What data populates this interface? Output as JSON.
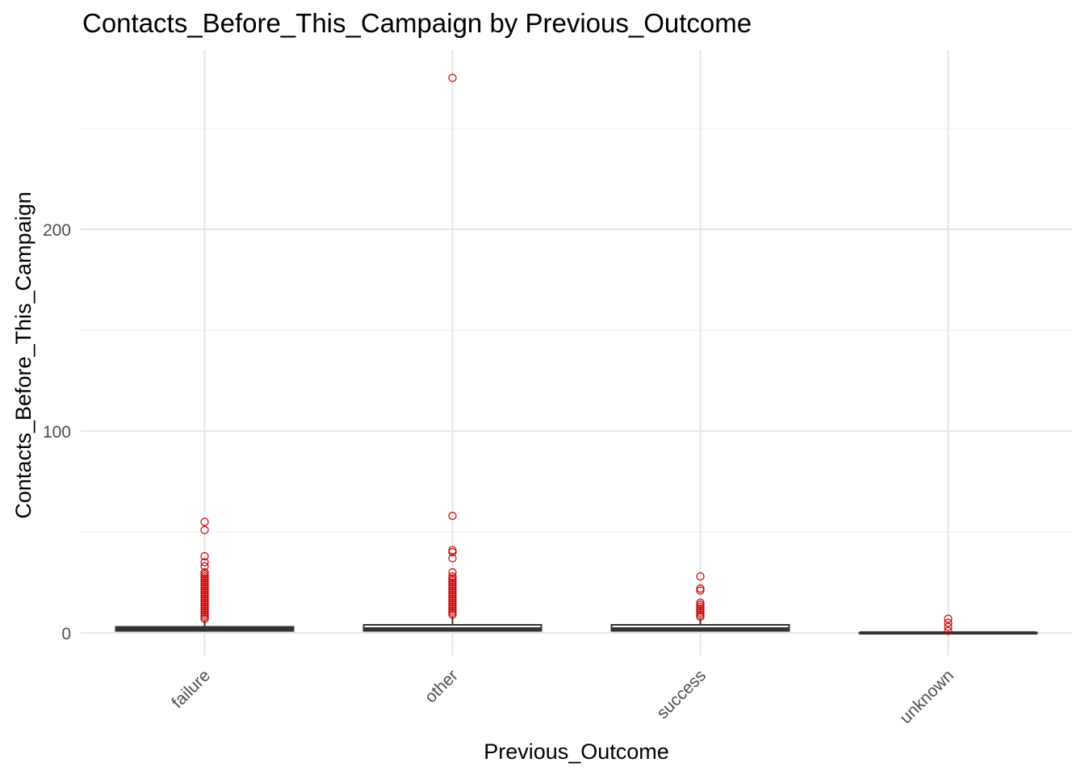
{
  "chart_data": {
    "type": "boxplot",
    "title": "Contacts_Before_This_Campaign by Previous_Outcome",
    "xlabel": "Previous_Outcome",
    "ylabel": "Contacts_Before_This_Campaign",
    "categories": [
      "failure",
      "other",
      "success",
      "unknown"
    ],
    "y_ticks": [
      0,
      100,
      200
    ],
    "ylim": [
      -12,
      289
    ],
    "grid": true,
    "outlier_color": "#cc0000",
    "box_color": "#333333",
    "boxes": [
      {
        "category": "failure",
        "min": 1,
        "q1": 1,
        "median": 2,
        "q3": 3,
        "max": 6,
        "outliers": [
          7,
          8,
          9,
          10,
          11,
          12,
          13,
          14,
          15,
          16,
          17,
          18,
          19,
          20,
          21,
          22,
          23,
          24,
          25,
          26,
          27,
          28,
          29,
          30,
          33,
          35,
          38,
          51,
          55
        ]
      },
      {
        "category": "other",
        "min": 1,
        "q1": 1,
        "median": 2,
        "q3": 4,
        "max": 8,
        "outliers": [
          9,
          10,
          11,
          12,
          13,
          14,
          15,
          16,
          17,
          18,
          19,
          20,
          21,
          22,
          23,
          24,
          25,
          26,
          27,
          28,
          30,
          37,
          40,
          41,
          58,
          275
        ]
      },
      {
        "category": "success",
        "min": 1,
        "q1": 1,
        "median": 2,
        "q3": 4,
        "max": 7,
        "outliers": [
          8,
          9,
          10,
          11,
          12,
          13,
          14,
          15,
          21,
          22,
          28
        ]
      },
      {
        "category": "unknown",
        "min": 0,
        "q1": 0,
        "median": 0,
        "q3": 0,
        "max": 0,
        "outliers": [
          1,
          3,
          5,
          7
        ]
      }
    ]
  }
}
